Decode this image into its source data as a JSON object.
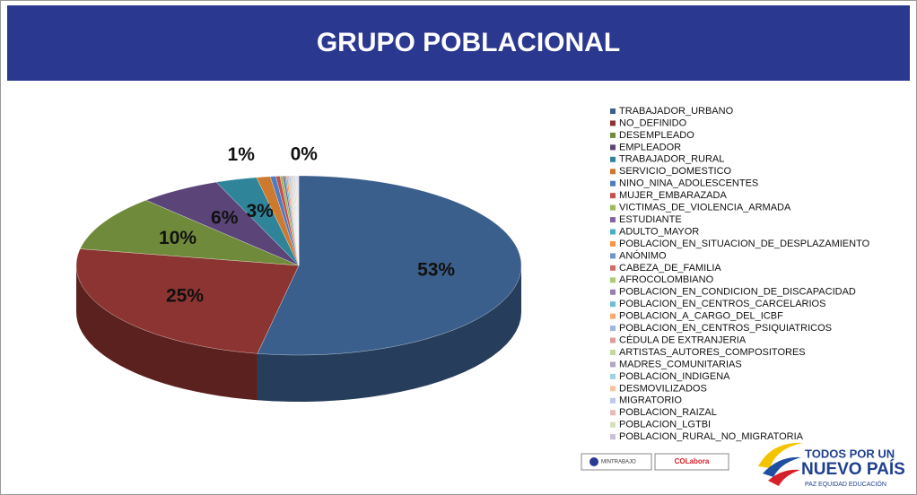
{
  "chart_data": {
    "type": "pie",
    "title": "GRUPO POBLACIONAL",
    "categories": [
      "TRABAJADOR_URBANO",
      "NO_DEFINIDO",
      "DESEMPLEADO",
      "EMPLEADOR",
      "TRABAJADOR_RURAL",
      "SERVICIO_DOMESTICO",
      "NINO_NINA_ADOLESCENTES",
      "MUJER_EMBARAZADA",
      "VICTIMAS_DE_VIOLENCIA_ARMADA",
      "ESTUDIANTE",
      "ADULTO_MAYOR",
      "POBLACION_EN_SITUACION_DE_DESPLAZAMIENTO",
      "ANÓNIMO",
      "CABEZA_DE_FAMILIA",
      "AFROCOLOMBIANO",
      "POBLACION_EN_CONDICION_DE_DISCAPACIDAD",
      "POBLACION_EN_CENTROS_CARCELARIOS",
      "POBLACION_A_CARGO_DEL_ICBF",
      "POBLACION_EN_CENTROS_PSIQUIATRICOS",
      "CÉDULA DE EXTRANJERIA",
      "ARTISTAS_AUTORES_COMPOSITORES",
      "MADRES_COMUNITARIAS",
      "POBLACION_INDIGENA",
      "DESMOVILIZADOS",
      "MIGRATORIO",
      "POBLACION_RAIZAL",
      "POBLACION_LGTBI",
      "POBLACION_RURAL_NO_MIGRATORIA"
    ],
    "values": [
      53,
      25,
      10,
      6,
      3,
      1,
      0.4,
      0.3,
      0.2,
      0.15,
      0.1,
      0.1,
      0.05,
      0.05,
      0.05,
      0.05,
      0.05,
      0.05,
      0.05,
      0.05,
      0.05,
      0.05,
      0.05,
      0.05,
      0.05,
      0.05,
      0.05,
      0.05
    ],
    "value_labels": [
      "53%",
      "25%",
      "10%",
      "6%",
      "3%",
      "1%",
      "0%",
      null,
      null,
      null,
      null,
      null,
      null,
      null,
      null,
      null,
      null,
      null,
      null,
      null,
      null,
      null,
      null,
      null,
      null,
      null,
      null,
      null
    ],
    "colors": [
      "#3b5f8c",
      "#8c3431",
      "#6f8a3a",
      "#5a4478",
      "#2f8499",
      "#cd7a2e",
      "#4f7cc0",
      "#c4504d",
      "#9bbb59",
      "#8064a2",
      "#4bacc6",
      "#f79646",
      "#6f93cf",
      "#d06c69",
      "#aecb74",
      "#977fb6",
      "#6fbdd3",
      "#f8ab6e",
      "#9fb5dc",
      "#dc9d9b",
      "#c3d79f",
      "#b3a4c9",
      "#9fd1e0",
      "#f9c3a0",
      "#bccae6",
      "#e4bcbb",
      "#d3e2bc",
      "#c9bfd9"
    ]
  },
  "logos": {
    "mintrabajo": "MINTRABAJO",
    "colabora": "COLabora",
    "slogan_1": "TODOS POR UN",
    "slogan_2": "NUEVO PAÍS",
    "slogan_3": "PAZ  EQUIDAD  EDUCACIÓN"
  }
}
